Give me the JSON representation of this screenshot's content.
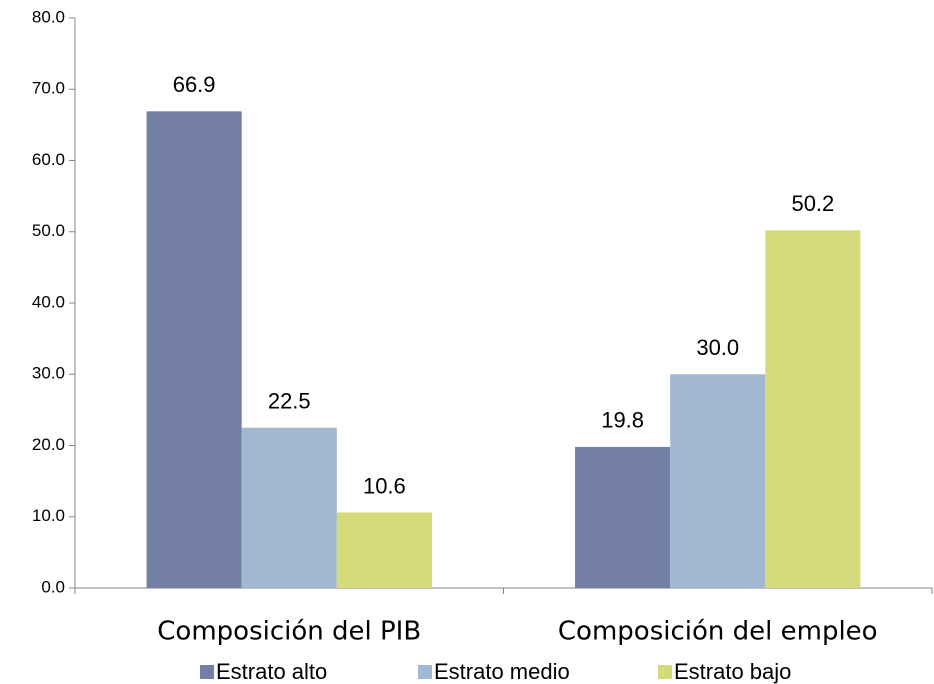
{
  "chart_data": {
    "type": "bar",
    "categories": [
      "Composición del PIB",
      "Composición del empleo"
    ],
    "series": [
      {
        "name": "Estrato alto",
        "color": "#737fa4",
        "values": [
          66.9,
          19.8
        ],
        "value_labels": [
          "66.9",
          "19.8"
        ]
      },
      {
        "name": "Estrato medio",
        "color": "#a1b9d0",
        "values": [
          22.5,
          30
        ],
        "value_labels": [
          "22.5",
          "30.0"
        ]
      },
      {
        "name": "Estrato bajo",
        "color": "#d5db7b",
        "values": [
          10.6,
          50.2
        ],
        "value_labels": [
          "10.6",
          "50.2"
        ]
      }
    ],
    "ylim": [
      0,
      80
    ],
    "yticks": [
      {
        "value": 0,
        "label": "0.0"
      },
      {
        "value": 10,
        "label": "10.0"
      },
      {
        "value": 20,
        "label": "20.0"
      },
      {
        "value": 30,
        "label": "30.0"
      },
      {
        "value": 40,
        "label": "40.0"
      },
      {
        "value": 50,
        "label": "50.0"
      },
      {
        "value": 60,
        "label": "60.0"
      },
      {
        "value": 70,
        "label": "70.0"
      },
      {
        "value": 80,
        "label": "80.0"
      }
    ],
    "grid": false,
    "legend": "bottom"
  }
}
